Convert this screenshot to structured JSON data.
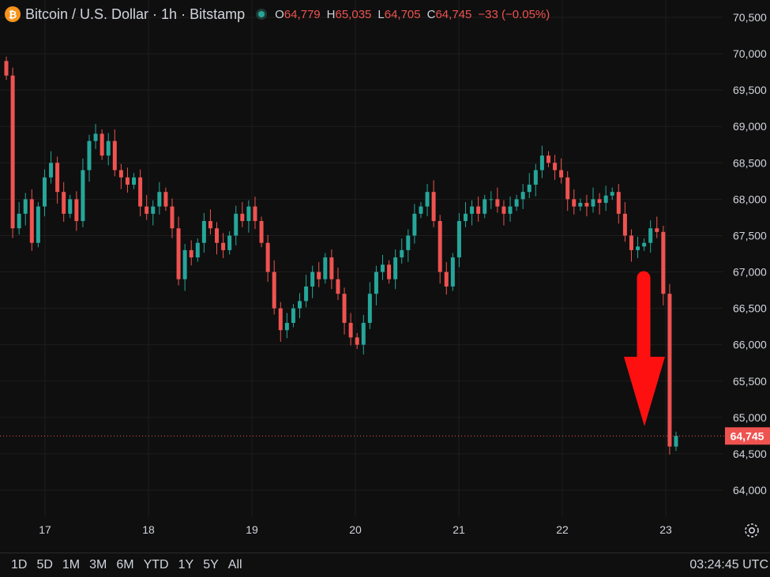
{
  "header": {
    "symbol_icon": "bitcoin-icon",
    "icon_glyph": "₿",
    "title": "Bitcoin / U.S. Dollar · 1h · Bitstamp",
    "ohlc": {
      "o_label": "O",
      "o_value": "64,779",
      "h_label": "H",
      "h_value": "65,035",
      "l_label": "L",
      "l_value": "64,705",
      "c_label": "C",
      "c_value": "64,745",
      "change": "−33 (−0.05%)"
    }
  },
  "price_tag": "64,745",
  "time_ranges": [
    "1D",
    "5D",
    "1M",
    "3M",
    "6M",
    "YTD",
    "1Y",
    "5Y",
    "All"
  ],
  "clock": "03:24:45 UTC",
  "settings_icon": "gear-icon",
  "colors": {
    "background": "#0f0f0f",
    "up": "#26a69a",
    "down": "#ef5350",
    "grid": "#1e1e1e",
    "arrow": "#ff1010",
    "text": "#d1d4dc"
  },
  "chart_data": {
    "type": "candlestick",
    "title": "Bitcoin / U.S. Dollar · 1h · Bitstamp",
    "y_ticks": [
      64000,
      64500,
      65000,
      65500,
      66000,
      66500,
      67000,
      67500,
      68000,
      68500,
      69000,
      69500,
      70000,
      70500
    ],
    "y_tick_labels": [
      "64,000",
      "64,500",
      "65,000",
      "65,500",
      "66,000",
      "66,500",
      "67,000",
      "67,500",
      "68,000",
      "68,500",
      "69,000",
      "69,500",
      "70,000",
      "70,500"
    ],
    "x_labels": [
      "17",
      "18",
      "19",
      "20",
      "21",
      "22",
      "23"
    ],
    "ylim": [
      63500,
      70700
    ],
    "last_price": 64745,
    "annotation": "red downward arrow",
    "grid": true,
    "candles_approx_close": [
      69700,
      67600,
      67800,
      68000,
      67400,
      67900,
      68300,
      68500,
      68100,
      67800,
      68000,
      67700,
      68400,
      68800,
      68900,
      68600,
      68800,
      68400,
      68300,
      68200,
      68300,
      67900,
      67800,
      67900,
      68100,
      67900,
      67600,
      66900,
      67300,
      67200,
      67400,
      67700,
      67600,
      67400,
      67300,
      67500,
      67800,
      67700,
      67900,
      67700,
      67400,
      67000,
      66500,
      66200,
      66300,
      66500,
      66600,
      66800,
      67000,
      66900,
      67200,
      66900,
      66700,
      66300,
      66100,
      66000,
      66300,
      66700,
      67000,
      67100,
      66900,
      67200,
      67300,
      67500,
      67800,
      67900,
      68100,
      67700,
      67000,
      66800,
      67200,
      67700,
      67800,
      67900,
      67800,
      68000,
      68000,
      67900,
      67800,
      67900,
      68000,
      68100,
      68200,
      68400,
      68600,
      68500,
      68400,
      68300,
      68000,
      67900,
      67950,
      67900,
      68000,
      67950,
      68050,
      68100,
      67800,
      67500,
      67300,
      67350,
      67400,
      67600,
      67550,
      66700,
      64600,
      64745
    ]
  }
}
